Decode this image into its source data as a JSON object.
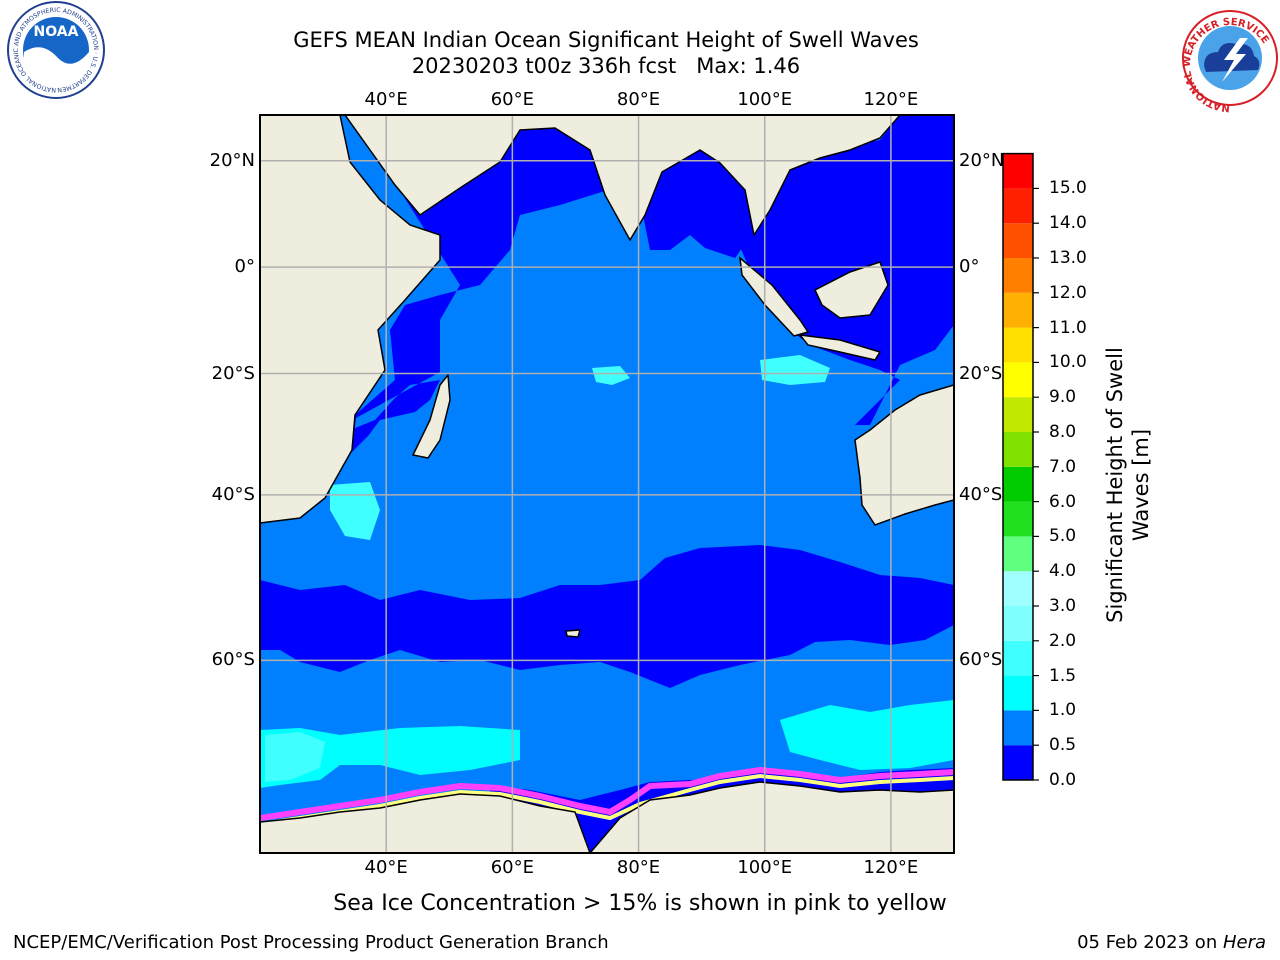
{
  "title": {
    "line1": "GEFS MEAN Indian Ocean Significant Height of Swell Waves",
    "line2": "20230203 t00z 336h fcst   Max: 1.46"
  },
  "map": {
    "lon_range": [
      20,
      130
    ],
    "lat_range": [
      -74,
      28
    ],
    "lon_ticks": [
      {
        "value": 40,
        "label": "40°E"
      },
      {
        "value": 60,
        "label": "60°E"
      },
      {
        "value": 80,
        "label": "80°E"
      },
      {
        "value": 100,
        "label": "100°E"
      },
      {
        "value": 120,
        "label": "120°E"
      }
    ],
    "lat_ticks": [
      {
        "value": 20,
        "label": "20°N"
      },
      {
        "value": 0,
        "label": "0°"
      },
      {
        "value": -20,
        "label": "20°S"
      },
      {
        "value": -40,
        "label": "40°S"
      },
      {
        "value": -60,
        "label": "60°S"
      }
    ],
    "colors": {
      "land": "#efedde",
      "ocean_main": "#0080ff",
      "ocean_calm": "#0000ff",
      "swell_high": "#00ffff",
      "swell_mid": "#80ffff",
      "sea_ice": "#ff40ff",
      "sea_ice_edge": "#ffff80",
      "grid": "#b0b0b0"
    }
  },
  "colorbar": {
    "label": "Significant Height of Swell Waves [m]",
    "ticks": [
      "0.0",
      "0.5",
      "1.0",
      "1.5",
      "2.0",
      "3.0",
      "4.0",
      "5.0",
      "6.0",
      "7.0",
      "8.0",
      "9.0",
      "10.0",
      "11.0",
      "12.0",
      "13.0",
      "14.0",
      "15.0"
    ],
    "colors": [
      "#0000ff",
      "#0080ff",
      "#00ffff",
      "#40ffff",
      "#80ffff",
      "#a0ffff",
      "#60ff80",
      "#20e020",
      "#00cc00",
      "#80e000",
      "#c0e800",
      "#ffff00",
      "#ffe000",
      "#ffb000",
      "#ff8000",
      "#ff5000",
      "#ff2000",
      "#ff0000"
    ]
  },
  "caption": "Sea Ice Concentration > 15% is shown in pink to yellow",
  "footer": {
    "left": "NCEP/EMC/Verification Post Processing Product Generation Branch",
    "right_date": "05 Feb 2023 on ",
    "right_host": "Hera"
  },
  "logos": {
    "noaa": {
      "icon": "noaa-logo",
      "center_text": "NOAA",
      "ring_text": "NATIONAL OCEANIC AND ATMOSPHERIC ADMINISTRATION · U.S. DEPARTMENT OF COMMERCE"
    },
    "nws": {
      "icon": "nws-logo",
      "ring_text": "NATIONAL WEATHER SERVICE"
    }
  }
}
